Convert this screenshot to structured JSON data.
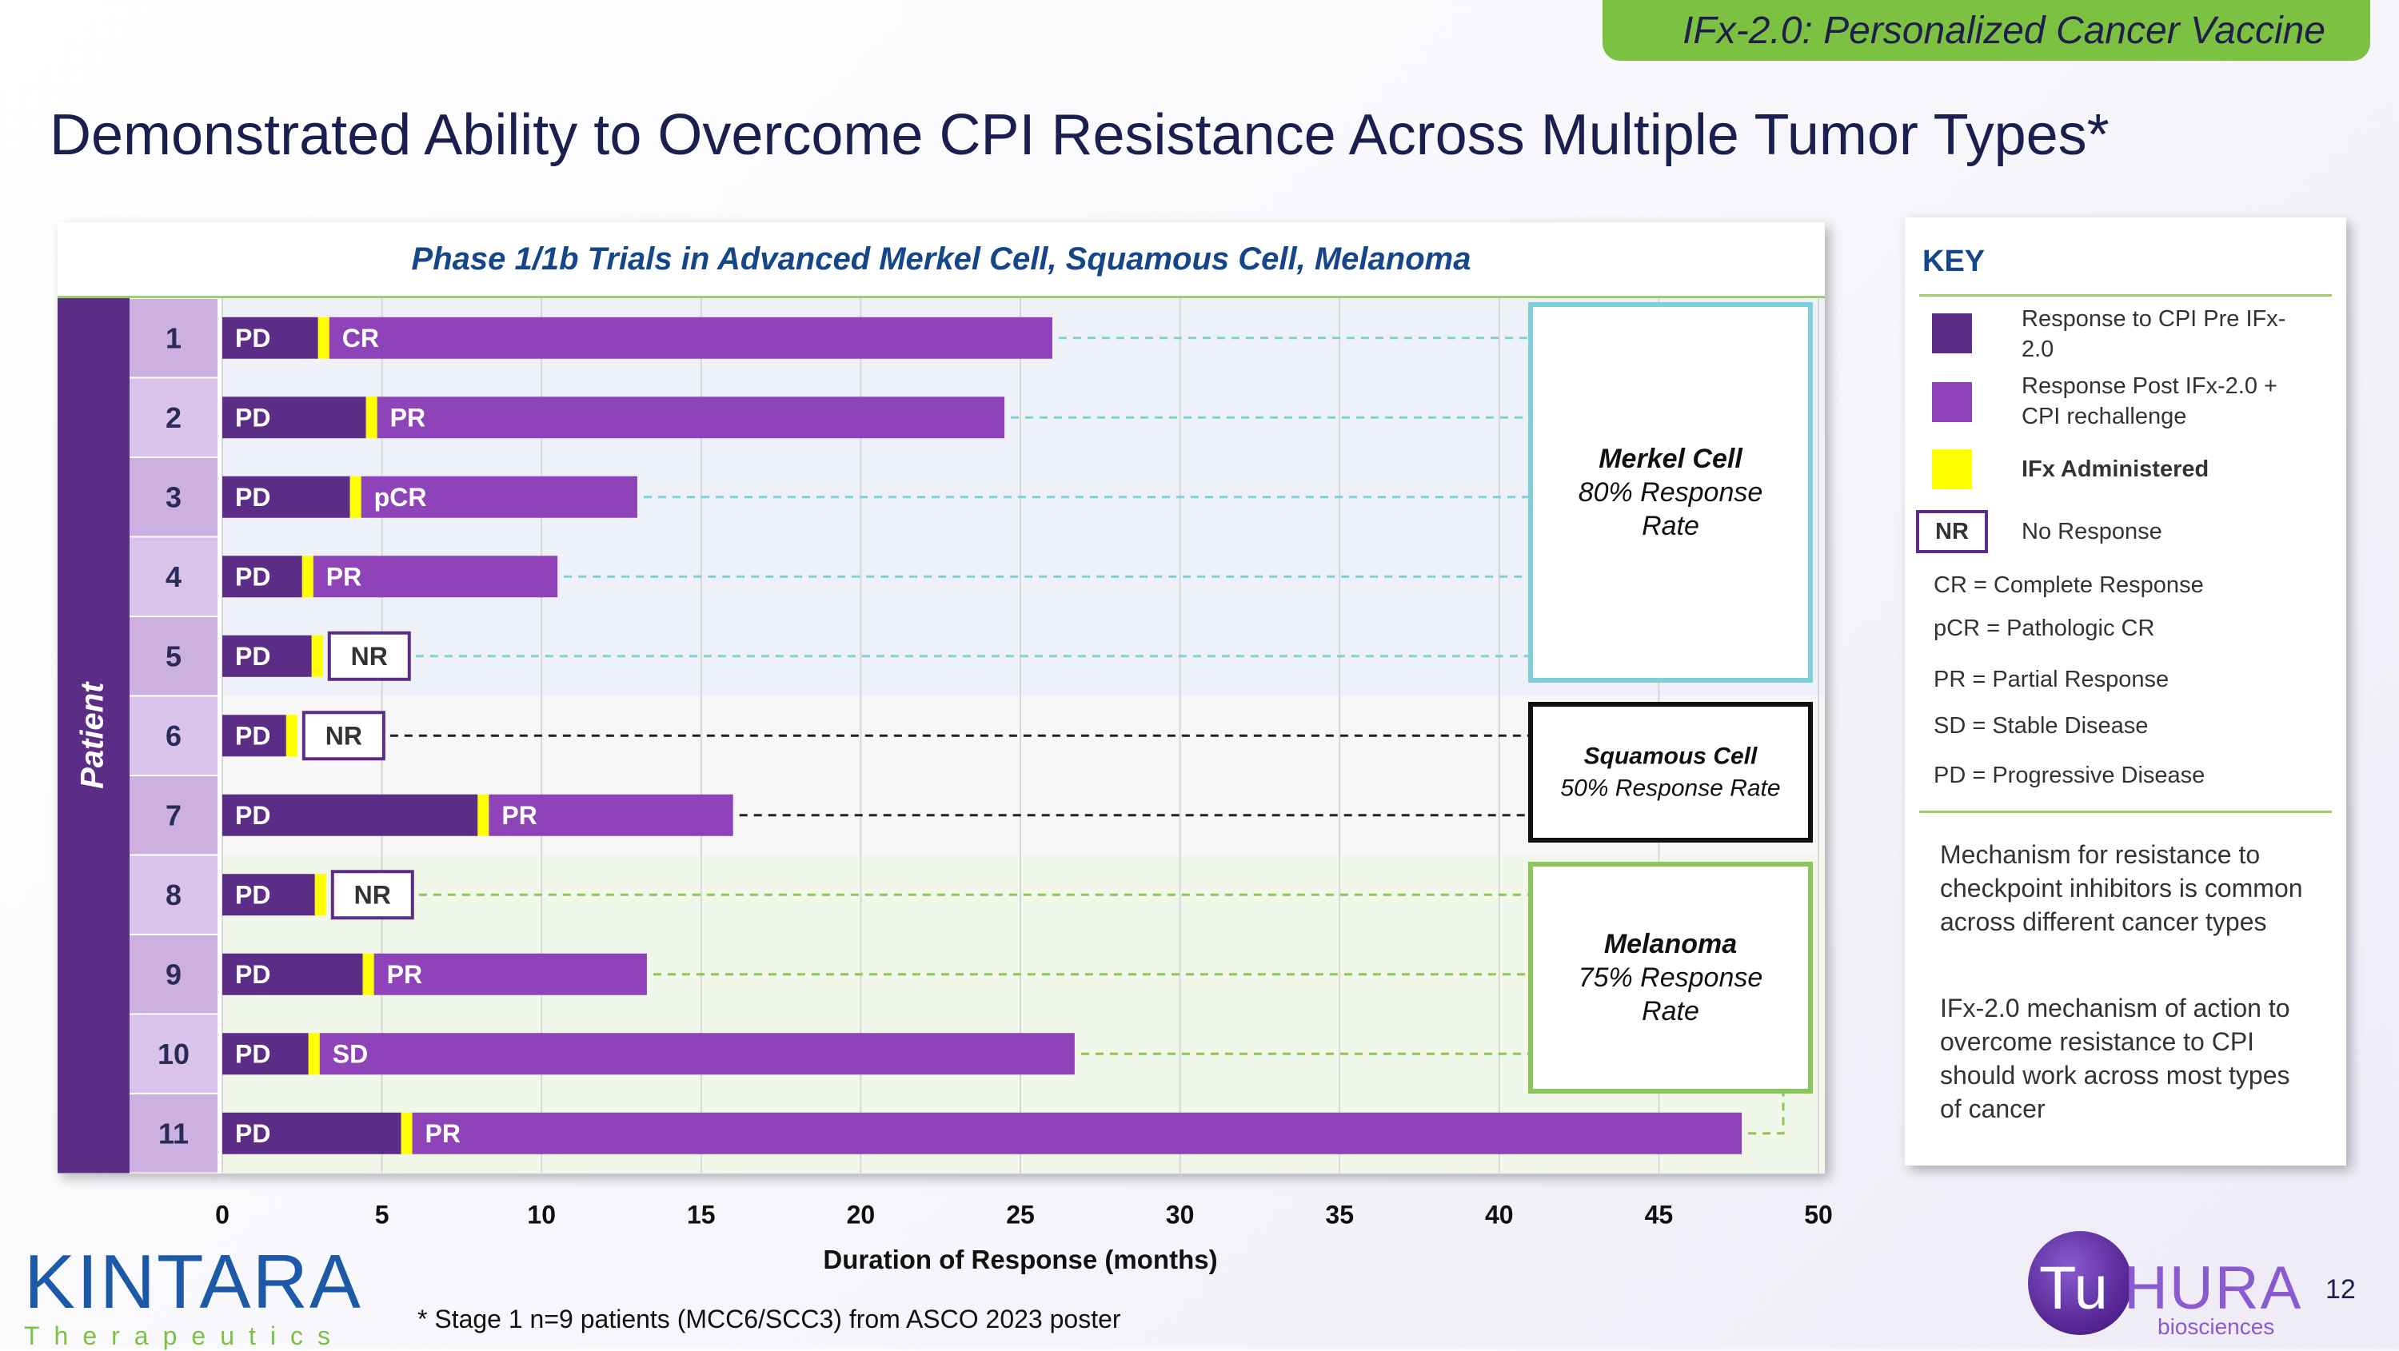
{
  "header": {
    "badge": "IFx-2.0: Personalized Cancer Vaccine",
    "title": "Demonstrated Ability to Overcome CPI Resistance Across Multiple Tumor Types*"
  },
  "chart_data": {
    "type": "bar",
    "orientation": "horizontal",
    "title": "Phase 1/1b Trials in Advanced Merkel Cell, Squamous Cell, Melanoma",
    "xlabel": "Duration of Response (months)",
    "ylabel": "Patient",
    "xlim": [
      0,
      50
    ],
    "xticks": [
      0,
      5,
      10,
      15,
      20,
      25,
      30,
      35,
      40,
      45,
      50
    ],
    "grid": true,
    "series_names": [
      "Response to CPI Pre IFx-2.0",
      "IFx Administered",
      "Response Post IFx-2.0 + CPI rechallenge"
    ],
    "patients": [
      {
        "id": "1",
        "pre": 3.0,
        "pre_label": "PD",
        "post_end": 26.0,
        "post_label": "CR",
        "group": "merkel"
      },
      {
        "id": "2",
        "pre": 4.5,
        "pre_label": "PD",
        "post_end": 24.5,
        "post_label": "PR",
        "group": "merkel"
      },
      {
        "id": "3",
        "pre": 4.0,
        "pre_label": "PD",
        "post_end": 13.0,
        "post_label": "pCR",
        "group": "merkel"
      },
      {
        "id": "4",
        "pre": 2.5,
        "pre_label": "PD",
        "post_end": 10.5,
        "post_label": "PR",
        "group": "merkel"
      },
      {
        "id": "5",
        "pre": 2.8,
        "pre_label": "PD",
        "post_end": null,
        "post_label": "NR",
        "group": "merkel"
      },
      {
        "id": "6",
        "pre": 2.0,
        "pre_label": "PD",
        "post_end": null,
        "post_label": "NR",
        "group": "squamous"
      },
      {
        "id": "7",
        "pre": 8.0,
        "pre_label": "PD",
        "post_end": 16.0,
        "post_label": "PR",
        "group": "squamous"
      },
      {
        "id": "8",
        "pre": 2.9,
        "pre_label": "PD",
        "post_end": null,
        "post_label": "NR",
        "group": "melanoma"
      },
      {
        "id": "9",
        "pre": 4.4,
        "pre_label": "PD",
        "post_end": 13.3,
        "post_label": "PR",
        "group": "melanoma"
      },
      {
        "id": "10",
        "pre": 2.7,
        "pre_label": "PD",
        "post_end": 26.7,
        "post_label": "SD",
        "group": "melanoma"
      },
      {
        "id": "11",
        "pre": 5.6,
        "pre_label": "PD",
        "post_end": 47.6,
        "post_label": "PR",
        "group": "melanoma"
      }
    ],
    "groups": [
      {
        "id": "merkel",
        "name": "Merkel Cell",
        "rate": "80% Response Rate",
        "color": "#7fd0d8"
      },
      {
        "id": "squamous",
        "name": "Squamous Cell",
        "rate": "50% Response Rate",
        "color": "#111111"
      },
      {
        "id": "melanoma",
        "name": "Melanoma",
        "rate": "75% Response Rate",
        "color": "#8cc65a"
      }
    ]
  },
  "key": {
    "title": "KEY",
    "items": [
      {
        "label": "Response to CPI Pre IFx-2.0",
        "color": "#5b2d86"
      },
      {
        "label": "Response Post IFx-2.0 + CPI rechallenge",
        "color": "#8e44b8"
      },
      {
        "label": "IFx Administered",
        "color": "#ffff00"
      }
    ],
    "nr_box": "NR",
    "nr_label": "No Response",
    "abbreviations": [
      "CR = Complete Response",
      "pCR = Pathologic CR",
      "PR = Partial Response",
      "SD = Stable Disease",
      "PD = Progressive Disease"
    ],
    "notes": [
      "Mechanism for resistance to checkpoint inhibitors is common across different cancer types",
      "IFx-2.0 mechanism of action  to overcome resistance to CPI should work across most types of cancer"
    ]
  },
  "footer": {
    "footnote": "* Stage 1 n=9 patients (MCC6/SCC3) from ASCO 2023 poster",
    "page_number": "12",
    "kintara_name": "KINTARA",
    "kintara_sub": "Therapeutics",
    "tuhura_tu": "Tu",
    "tuhura_hura": "HURA",
    "tuhura_sub": "biosciences"
  },
  "colors": {
    "pre": "#5b2d86",
    "post": "#8e44b8",
    "ifx": "#ffff00",
    "patient_band": "#5b2d86",
    "id_even": "#cbb0e0",
    "id_odd": "#d9c3ea"
  }
}
